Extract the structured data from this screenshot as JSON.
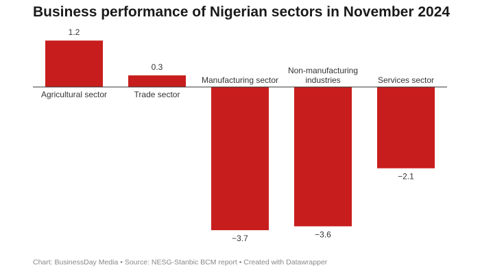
{
  "chart_data": {
    "type": "bar",
    "title": "Business performance of Nigerian sectors in November 2024",
    "categories": [
      "Agricultural sector",
      "Trade sector",
      "Manufacturing sector",
      "Non-manufacturing industries",
      "Services sector"
    ],
    "values": [
      1.2,
      0.3,
      -3.7,
      -3.6,
      -2.1
    ],
    "value_labels": [
      "1.2",
      "0.3",
      "−3.7",
      "−3.6",
      "−2.1"
    ],
    "bar_color": "#c71e1d",
    "grid": false,
    "xlabel": "",
    "ylabel": ""
  },
  "footer": "Chart: BusinessDay Media • Source: NESG-Stanbic BCM report • Created with Datawrapper"
}
